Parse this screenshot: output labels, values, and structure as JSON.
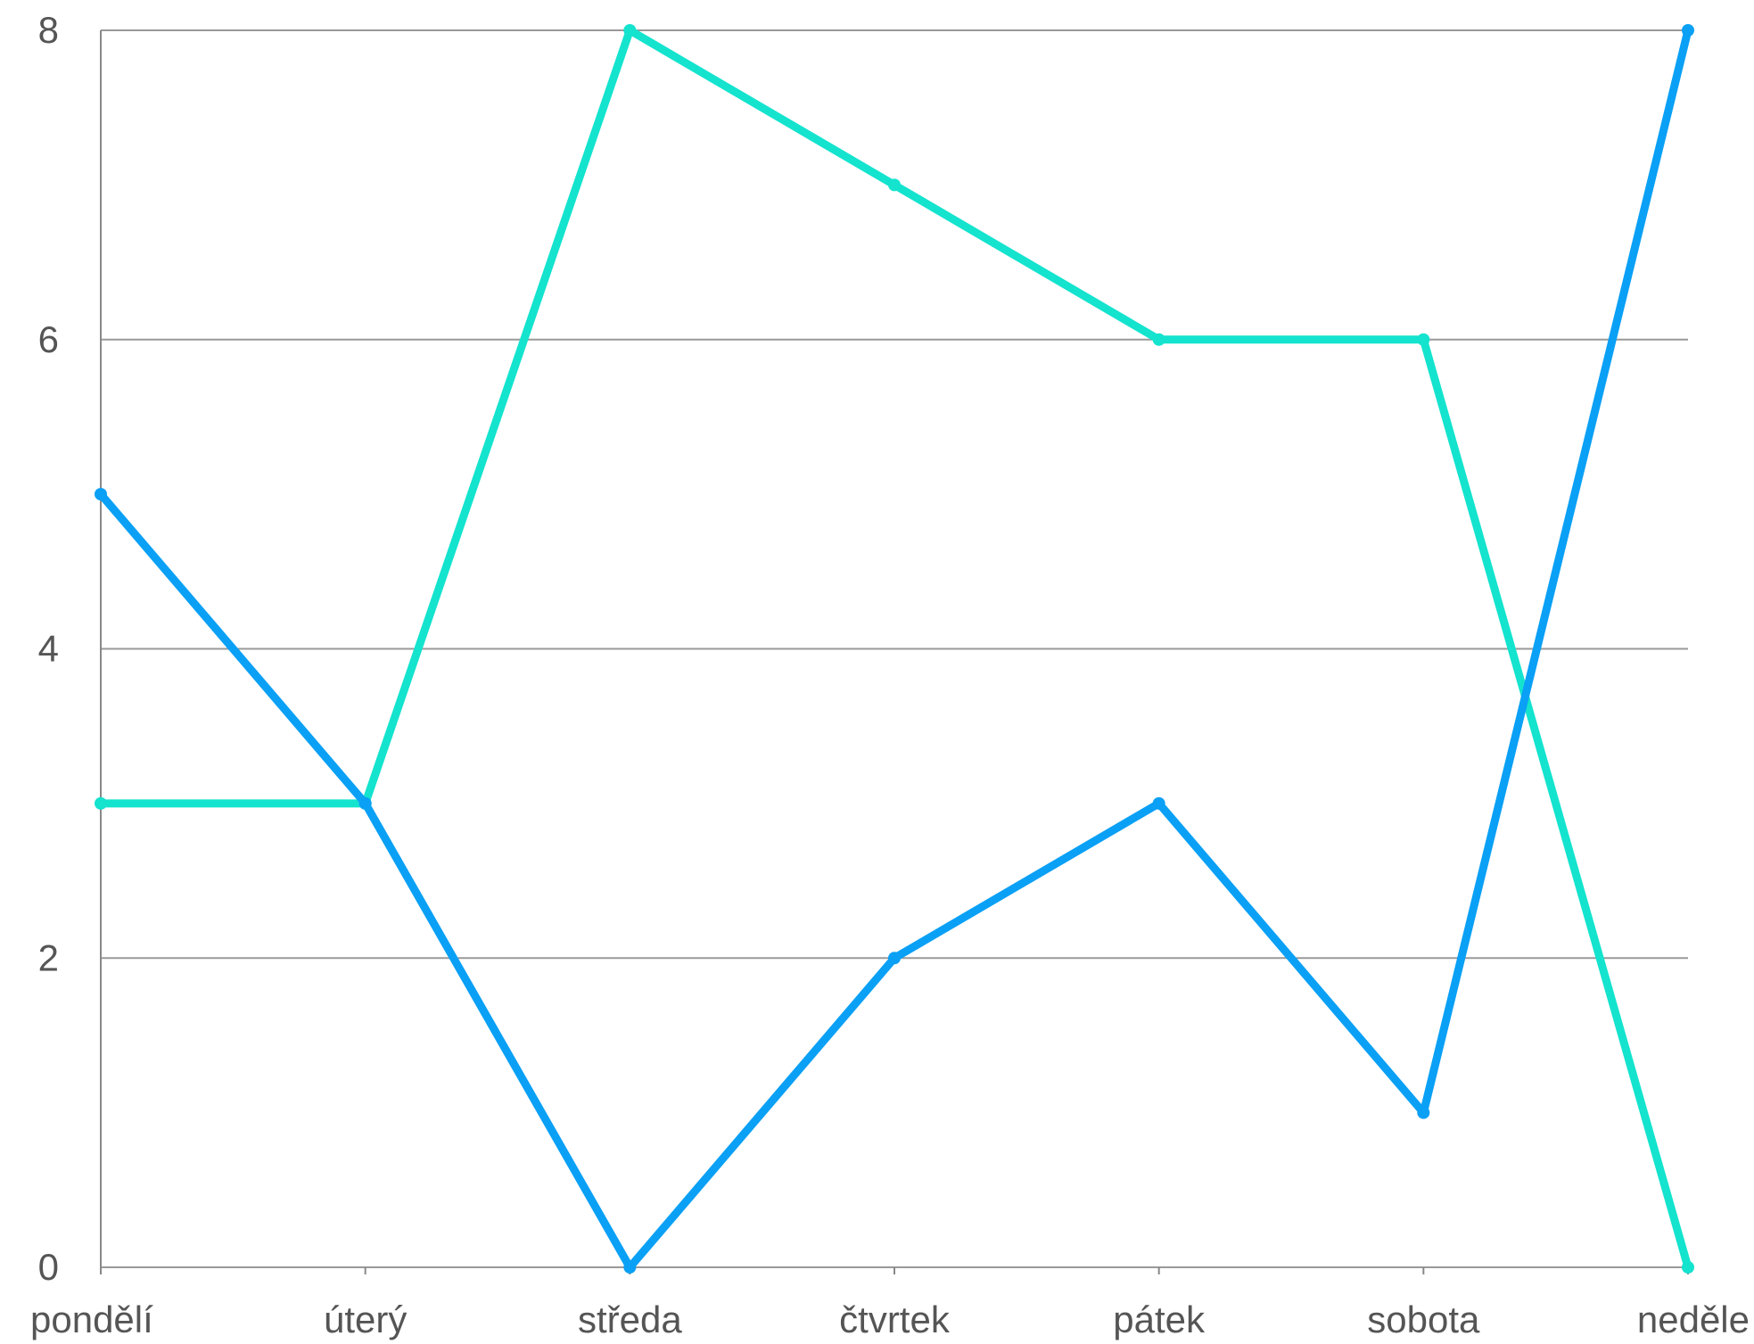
{
  "chart_data": {
    "type": "line",
    "categories": [
      "pondělí",
      "úterý",
      "středa",
      "čtvrtek",
      "pátek",
      "sobota",
      "neděle"
    ],
    "ylim": [
      0,
      8
    ],
    "yticks": [
      "0",
      "2",
      "4",
      "6",
      "8"
    ],
    "grid": true,
    "legend": "none",
    "series": [
      {
        "color": "#14E3CE",
        "values": [
          3,
          3,
          8,
          7,
          6,
          6,
          0
        ]
      },
      {
        "color": "#0AA0F5",
        "values": [
          5,
          3,
          0,
          2,
          3,
          1,
          8
        ]
      }
    ]
  }
}
